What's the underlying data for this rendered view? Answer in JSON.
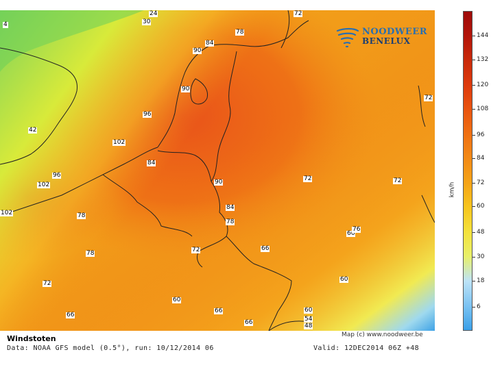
{
  "title": "Windstoten",
  "subtitle": "Data: NOAA GFS model (0.5°), run: 10/12/2014 06",
  "valid": "Valid: 12DEC2014 06Z +48",
  "credit": "Map (c) www.noodweer.be",
  "logo": {
    "line1": "NOODWEER",
    "line2": "BENELUX"
  },
  "colorbar": {
    "unit": "km/h",
    "ticks": [
      "6",
      "18",
      "30",
      "48",
      "60",
      "72",
      "84",
      "96",
      "108",
      "120",
      "132",
      "144"
    ],
    "colors": [
      "#3aa0e8",
      "#7cc3f2",
      "#bde3f7",
      "#e8f06a",
      "#f4e23c",
      "#f7c51e",
      "#f5a417",
      "#f28a16",
      "#ef7012",
      "#e9540f",
      "#dd3a0c",
      "#c92a0a",
      "#b3150a",
      "#9e0b0a"
    ]
  },
  "map_labels": [
    {
      "text": "4"
    },
    {
      "text": "24"
    },
    {
      "text": "30"
    },
    {
      "text": "72"
    },
    {
      "text": "78"
    },
    {
      "text": "84"
    },
    {
      "text": "90"
    },
    {
      "text": "90"
    },
    {
      "text": "72"
    },
    {
      "text": "96"
    },
    {
      "text": "42"
    },
    {
      "text": "102"
    },
    {
      "text": "84"
    },
    {
      "text": "96"
    },
    {
      "text": "102"
    },
    {
      "text": "90"
    },
    {
      "text": "72"
    },
    {
      "text": "72"
    },
    {
      "text": "102"
    },
    {
      "text": "78"
    },
    {
      "text": "84"
    },
    {
      "text": "78"
    },
    {
      "text": "66"
    },
    {
      "text": "76"
    },
    {
      "text": "72"
    },
    {
      "text": "66"
    },
    {
      "text": "78"
    },
    {
      "text": "60"
    },
    {
      "text": "72"
    },
    {
      "text": "60"
    },
    {
      "text": "66"
    },
    {
      "text": "60"
    },
    {
      "text": "66"
    },
    {
      "text": "66"
    },
    {
      "text": "54"
    },
    {
      "text": "48"
    }
  ]
}
